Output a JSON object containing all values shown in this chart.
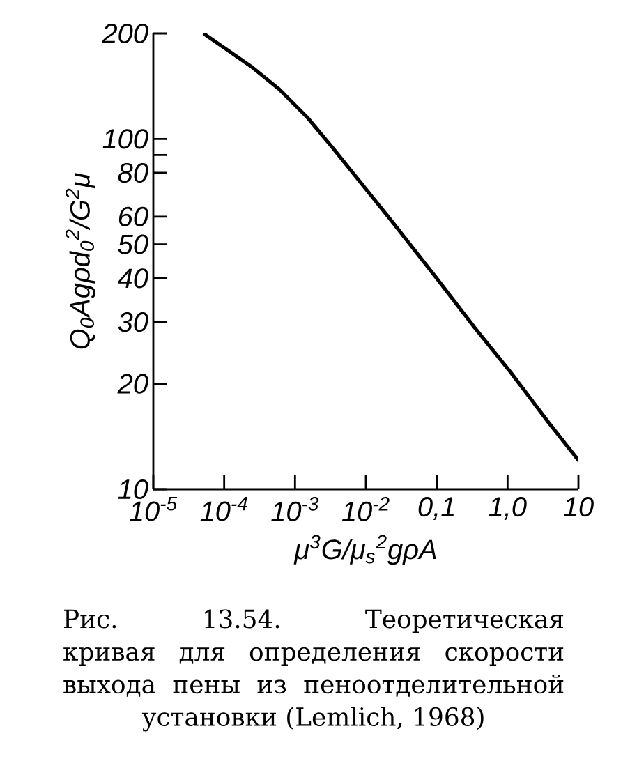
{
  "chart_data": {
    "type": "line",
    "xlabel": "μ$^{3}$G/μ$_{s}$$^{2}$gρA",
    "ylabel": "Q$_{0}$Agρd$_{0}$$^{2}$/G$^{2}$μ",
    "annotations": [
      "Рис. 13.54. Теоретическая кривая для определения скорости выхода пены из пеноотделительной установки (Lemlich, 1968)"
    ],
    "x": [
      5.3e-05,
      0.00024,
      0.00059,
      0.0015,
      0.0036,
      0.022,
      0.1,
      0.34,
      1.1,
      3.8,
      10
    ],
    "values": [
      199,
      161,
      139,
      115,
      93,
      59,
      40,
      29,
      21.6,
      15.5,
      12.1
    ],
    "color": "#000000",
    "log": "xy",
    "xlim": [
      1e-05,
      10
    ],
    "ylim": [
      10,
      200
    ],
    "xticks": [
      {
        "value": 1e-05,
        "label": "10$^{-5}$"
      },
      {
        "value": 0.0001,
        "label": "10$^{-4}$"
      },
      {
        "value": 0.001,
        "label": "10$^{-3}$"
      },
      {
        "value": 0.01,
        "label": "10$^{-2}$"
      },
      {
        "value": 0.1,
        "label": "0,1"
      },
      {
        "value": 1,
        "label": "1,0"
      },
      10
    ],
    "yticks": [
      10,
      20,
      30,
      40,
      50,
      60,
      80,
      {
        "value": 90,
        "label": null
      },
      100,
      200
    ],
    "marker": "none",
    "line_style": "solid"
  }
}
